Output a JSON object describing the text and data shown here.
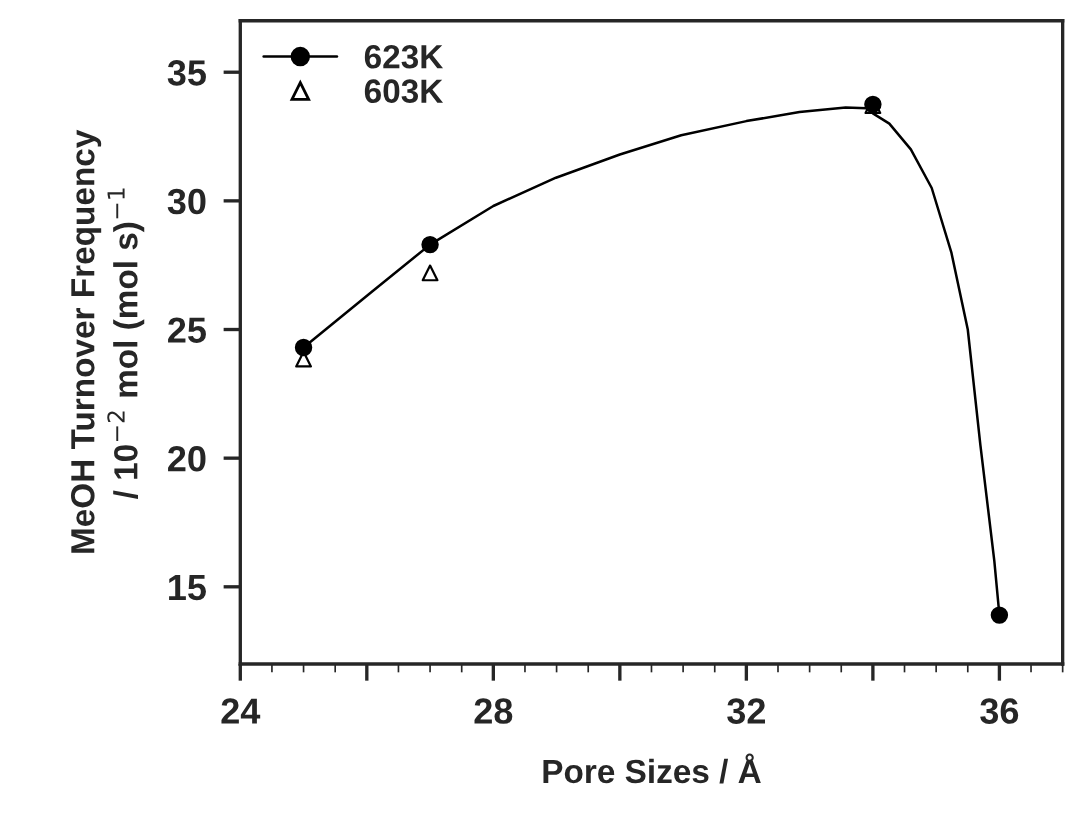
{
  "chart_data": {
    "type": "scatter",
    "xlabel": "Pore Sizes / Å",
    "ylabel": "MeOH Turnover Frequency\n/ 10$^{−2}$ mol (mol s)$^{−1}$",
    "xlim": [
      24,
      37
    ],
    "xticks": [
      24,
      {
        "value": 26,
        "label": null
      },
      28,
      {
        "value": 30,
        "label": null
      },
      32,
      {
        "value": 34,
        "label": null
      },
      36
    ],
    "ylim": [
      12,
      37
    ],
    "yticks": [
      15,
      20,
      25,
      30,
      35
    ],
    "grid": false,
    "legend": "top left",
    "series": [
      {
        "type": "line",
        "color": "#000000",
        "marker": "none",
        "line_style": "solid",
        "x": [
          25,
          26.07,
          27,
          28,
          28.99,
          30,
          30.97,
          32,
          32.84,
          33.57,
          33.9,
          34,
          34.26,
          34.6,
          34.93,
          35.24,
          35.5,
          35.7,
          35.92,
          36
        ],
        "values": [
          24.3,
          26.45,
          28.3,
          29.8,
          30.9,
          31.8,
          32.55,
          33.1,
          33.45,
          33.63,
          33.6,
          33.4,
          33.0,
          32.0,
          30.5,
          28.0,
          25.0,
          20.5,
          16.0,
          13.9
        ]
      },
      {
        "name": "623K",
        "color": "#000000",
        "marker": "circle",
        "x": [
          25,
          27,
          34,
          36
        ],
        "values": [
          24.3,
          28.3,
          33.75,
          13.9
        ]
      },
      {
        "name": "603K",
        "color": "#000000",
        "marker": "triangle",
        "x": [
          25,
          27,
          34
        ],
        "values": [
          23.85,
          27.2,
          33.7
        ]
      }
    ]
  }
}
